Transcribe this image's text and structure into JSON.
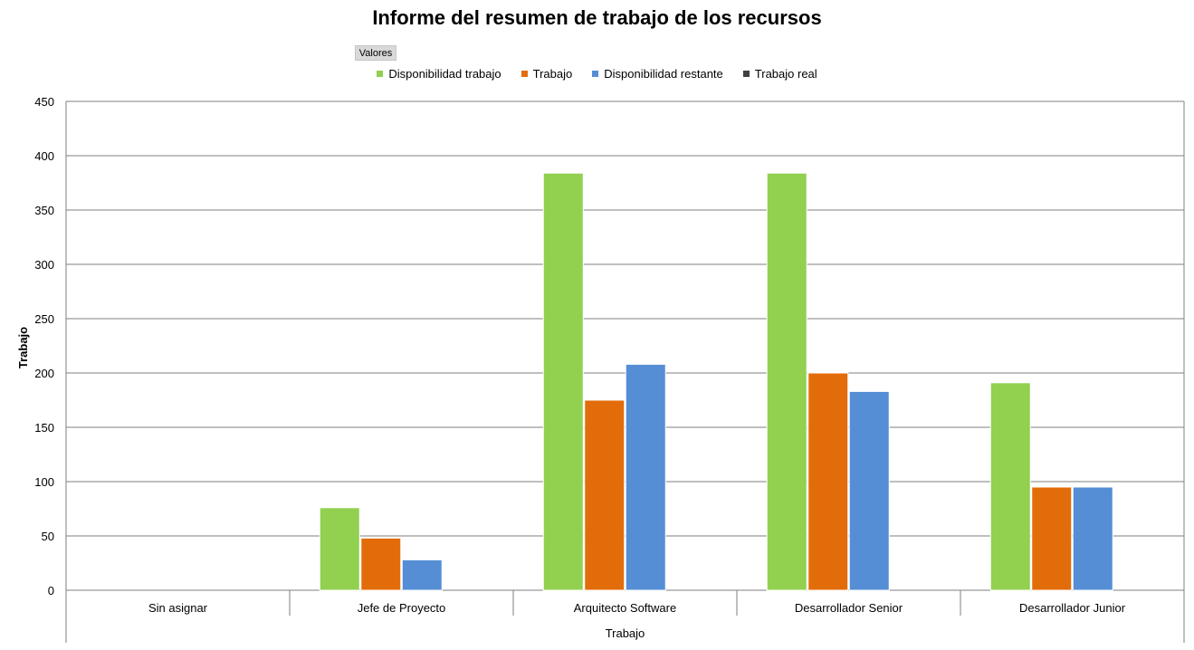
{
  "chart_data": {
    "type": "bar",
    "title": "Informe del resumen de trabajo de los recursos",
    "filter_button": "Valores",
    "xlabel": "Trabajo",
    "ylabel": "Trabajo",
    "categories": [
      "Sin asignar",
      "Jefe de Proyecto",
      "Arquitecto Software",
      "Desarrollador Senior",
      "Desarrollador Junior"
    ],
    "series": [
      {
        "name": "Disponibilidad trabajo",
        "color": "#92d050",
        "values": [
          0,
          76,
          384,
          384,
          191
        ]
      },
      {
        "name": "Trabajo",
        "color": "#e36c0a",
        "values": [
          0,
          48,
          175,
          200,
          95
        ]
      },
      {
        "name": "Disponibilidad restante",
        "color": "#558ed5",
        "values": [
          0,
          28,
          208,
          183,
          95
        ]
      },
      {
        "name": "Trabajo real",
        "color": "#404040",
        "values": [
          0,
          0,
          0,
          0,
          0
        ]
      }
    ],
    "ylim": [
      0,
      450
    ],
    "yticks": [
      0,
      50,
      100,
      150,
      200,
      250,
      300,
      350,
      400,
      450
    ],
    "grid": true,
    "legend_position": "top"
  }
}
